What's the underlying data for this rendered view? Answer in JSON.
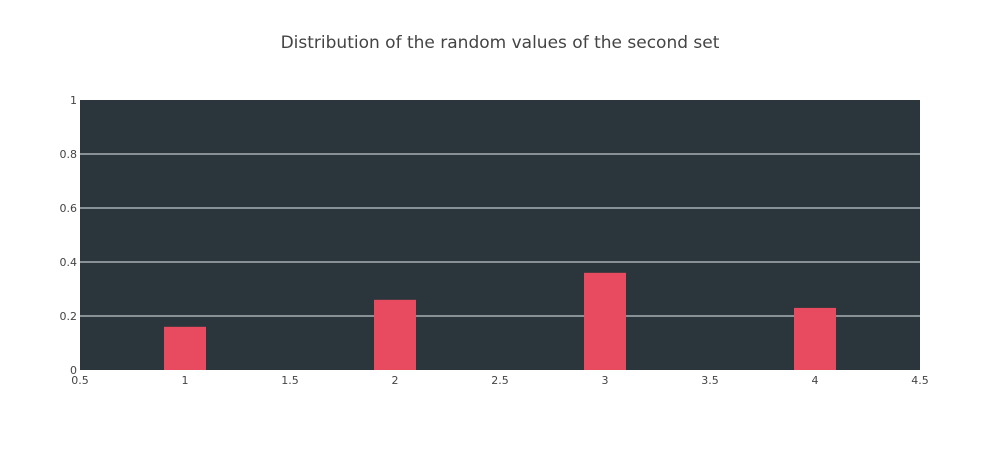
{
  "chart_data": {
    "type": "bar",
    "title": "Distribution of the random values of the second set",
    "x": [
      1,
      2,
      3,
      4
    ],
    "values": [
      0.16,
      0.26,
      0.36,
      0.23
    ],
    "xlim": [
      0.5,
      4.5
    ],
    "ylim": [
      0,
      1
    ],
    "x_ticks": [
      "0.5",
      "1",
      "1.5",
      "2",
      "2.5",
      "3",
      "3.5",
      "4",
      "4.5"
    ],
    "y_ticks": [
      "0",
      "0.2",
      "0.4",
      "0.6",
      "0.8",
      "1"
    ],
    "grid": "horizontal",
    "colors": {
      "bar": "#e84a5f",
      "plot_bg": "#2a363b",
      "grid": "#a8b1b5",
      "axis_text": "#444444"
    }
  }
}
